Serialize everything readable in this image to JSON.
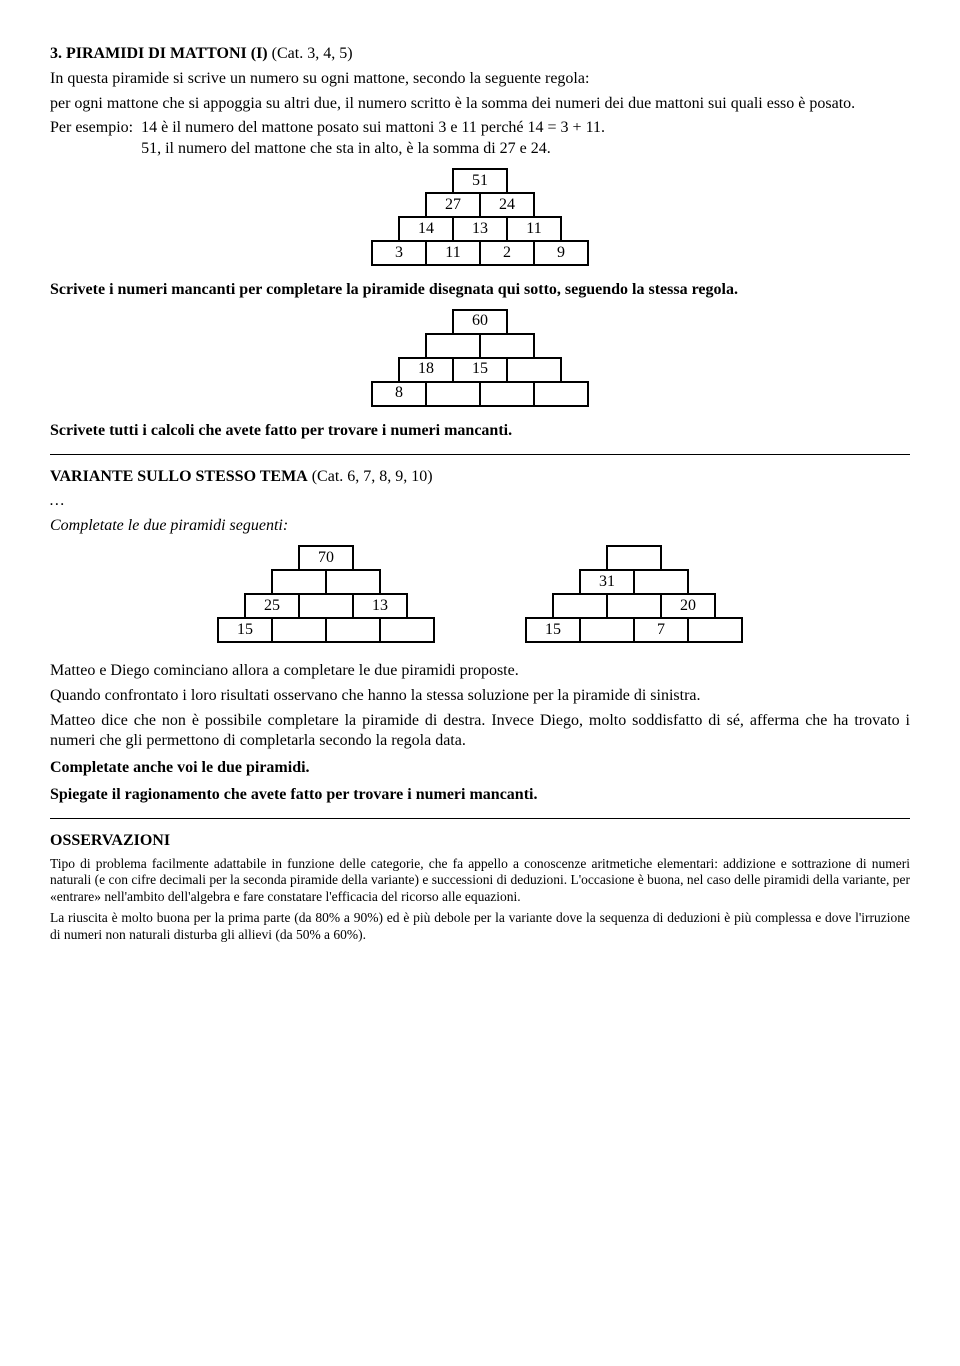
{
  "title_prefix": "3. PIRAMIDI DI MATTONI (I)",
  "title_suffix": " (Cat. 3, 4, 5)",
  "intro_p1": "In questa piramide si scrive un numero su ogni mattone, secondo la seguente regola:",
  "intro_p2": "per ogni mattone che si appoggia su altri due, il numero scritto è la somma dei numeri dei due mattoni sui quali esso è posato.",
  "example_label": "Per esempio:",
  "example_line1": "14 è il numero del mattone posato sui mattoni 3 e 11 perché 14 = 3 + 11.",
  "example_line2": "51, il numero del mattone che sta in alto, è la somma di 27 e 24.",
  "pyramid1": {
    "rows": [
      [
        "51"
      ],
      [
        "27",
        "24"
      ],
      [
        "14",
        "13",
        "11"
      ],
      [
        "3",
        "11",
        "2",
        "9"
      ]
    ]
  },
  "instr1": "Scrivete i numeri mancanti per completare la piramide disegnata qui sotto, seguendo la stessa regola.",
  "pyramid2": {
    "rows": [
      [
        "60"
      ],
      [
        "",
        ""
      ],
      [
        "18",
        "15",
        ""
      ],
      [
        "8",
        "",
        "",
        ""
      ]
    ]
  },
  "instr2": "Scrivete tutti i calcoli che avete fatto per trovare i numeri mancanti.",
  "var_title_prefix": "VARIANTE SULLO STESSO TEMA",
  "var_title_suffix": " (Cat. 6, 7, 8, 9, 10)",
  "dots": "…",
  "var_instr": "Completate le due piramidi seguenti:",
  "pyramid3": {
    "rows": [
      [
        "70"
      ],
      [
        "",
        ""
      ],
      [
        "25",
        "",
        "13"
      ],
      [
        "15",
        "",
        "",
        ""
      ]
    ]
  },
  "pyramid4": {
    "rows": [
      [
        ""
      ],
      [
        "31",
        ""
      ],
      [
        "",
        "",
        "20"
      ],
      [
        "15",
        "",
        "7",
        ""
      ]
    ]
  },
  "body_p1": "Matteo e Diego cominciano allora a completare le due piramidi proposte.",
  "body_p2": "Quando confrontato i loro risultati osservano che hanno la stessa soluzione per la piramide di sinistra.",
  "body_p3": "Matteo dice che non è possibile completare la piramide di destra. Invece Diego, molto soddisfatto di sé, afferma che ha trovato i numeri che gli permettono di completarla secondo la regola data.",
  "body_bold1": "Completate anche voi le due piramidi.",
  "body_bold2": "Spiegate il ragionamento che avete fatto per trovare i numeri mancanti.",
  "obs_title": "OSSERVAZIONI",
  "obs_p1": "Tipo di problema facilmente adattabile in funzione delle categorie, che fa appello a conoscenze aritmetiche elementari: addizione e sottrazione di numeri naturali (e con cifre decimali per la seconda piramide della variante) e successioni di deduzioni. L'occasione è buona, nel caso delle piramidi della variante, per «entrare» nell'ambito dell'algebra e fare constatare l'efficacia del ricorso alle equazioni.",
  "obs_p2": "La riuscita è molto buona per la prima parte (da 80% a 90%) ed è più debole per la variante dove la sequenza di deduzioni è più complessa e dove l'irruzione di numeri non naturali disturba gli allievi (da 50% a 60%)."
}
